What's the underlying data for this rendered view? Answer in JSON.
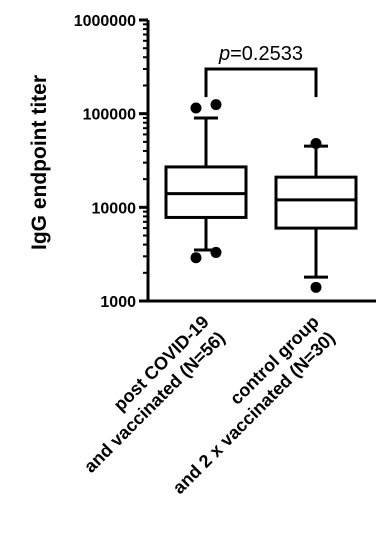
{
  "chart_data": {
    "type": "boxplot",
    "title": "",
    "xlabel": "",
    "ylabel": "IgG endpoint titer",
    "yscale": "log",
    "ylim": [
      1000,
      1000000
    ],
    "yticks": [
      {
        "value": 1000,
        "label": "1000"
      },
      {
        "value": 10000,
        "label": "10000"
      },
      {
        "value": 100000,
        "label": "100000"
      },
      {
        "value": 1000000,
        "label": "1000000"
      }
    ],
    "categories": [
      {
        "label_line1": "post COVID-19",
        "label_line2": "and vaccinated (N=56)",
        "whisker_low": 3500,
        "q1": 7800,
        "median": 14000,
        "q3": 27000,
        "whisker_high": 90000,
        "outliers": [
          2900,
          3300,
          115000,
          125000
        ]
      },
      {
        "label_line1": "control group",
        "label_line2": "and 2 x vaccinated (N=30)",
        "whisker_low": 1800,
        "q1": 6000,
        "median": 12000,
        "q3": 21000,
        "whisker_high": 45000,
        "outliers": [
          1400,
          48000
        ]
      }
    ],
    "annotation": {
      "p_prefix": "p",
      "p_value": "=0.2533",
      "bracket_level": 300000,
      "bracket_drop": 150000
    },
    "grid": false,
    "legend": "none",
    "colors": {
      "box_fill": "#ffffff",
      "stroke": "#000000"
    }
  }
}
